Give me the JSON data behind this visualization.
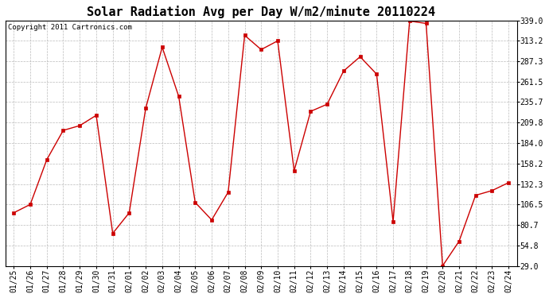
{
  "title": "Solar Radiation Avg per Day W/m2/minute 20110224",
  "copyright": "Copyright 2011 Cartronics.com",
  "dates": [
    "01/25",
    "01/26",
    "01/27",
    "01/28",
    "01/29",
    "01/30",
    "01/31",
    "02/01",
    "02/02",
    "02/03",
    "02/04",
    "02/05",
    "02/06",
    "02/07",
    "02/08",
    "02/09",
    "02/10",
    "02/11",
    "02/12",
    "02/13",
    "02/14",
    "02/15",
    "02/16",
    "02/17",
    "02/18",
    "02/19",
    "02/20",
    "02/21",
    "02/22",
    "02/23",
    "02/24"
  ],
  "values": [
    96.0,
    106.5,
    163.0,
    200.0,
    206.0,
    219.0,
    70.0,
    96.0,
    228.0,
    305.0,
    243.0,
    109.0,
    87.0,
    122.0,
    320.0,
    302.0,
    313.0,
    149.0,
    224.0,
    233.0,
    275.0,
    293.0,
    271.0,
    85.0,
    338.0,
    335.0,
    29.0,
    60.0,
    118.0,
    124.0,
    134.0
  ],
  "line_color": "#cc0000",
  "marker": "s",
  "marker_size": 2.5,
  "ytick_labels": [
    "29.0",
    "54.8",
    "80.7",
    "106.5",
    "132.3",
    "158.2",
    "184.0",
    "209.8",
    "235.7",
    "261.5",
    "287.3",
    "313.2",
    "339.0"
  ],
  "ytick_values": [
    29.0,
    54.8,
    80.7,
    106.5,
    132.3,
    158.2,
    184.0,
    209.8,
    235.7,
    261.5,
    287.3,
    313.2,
    339.0
  ],
  "ylim": [
    29.0,
    339.0
  ],
  "background_color": "#ffffff",
  "grid_color": "#bbbbbb",
  "title_fontsize": 11,
  "tick_fontsize": 7,
  "copyright_fontsize": 6.5
}
